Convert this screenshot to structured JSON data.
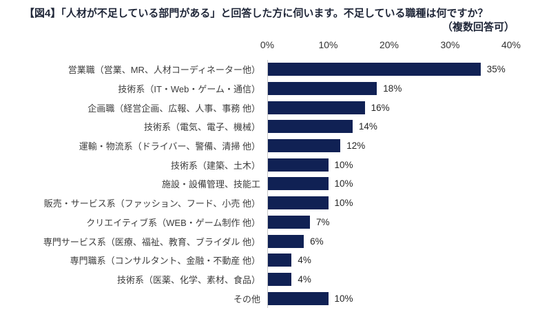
{
  "title": {
    "line1": "【図4】「人材が不足している部門がある」と回答した方に伺います。不足している職種は何ですか？",
    "line2": "（複数回答可）"
  },
  "chart_data": {
    "type": "bar",
    "orientation": "horizontal",
    "title": "【図4】「人材が不足している部門がある」と回答した方に伺います。不足している職種は何ですか？（複数回答可）",
    "categories": [
      "営業職（営業、MR、人材コーディネーター他）",
      "技術系（IT・Web・ゲーム・通信）",
      "企画職（経営企画、広報、人事、事務 他）",
      "技術系（電気、電子、機械）",
      "運輸・物流系（ドライバー、警備、清掃 他）",
      "技術系（建築、土木）",
      "施設・設備管理、技能工",
      "販売・サービス系（ファッション、フード、小売 他）",
      "クリエイティブ系（WEB・ゲーム制作 他）",
      "専門サービス系（医療、福祉、教育、ブライダル 他）",
      "専門職系（コンサルタント、金融・不動産 他）",
      "技術系（医薬、化学、素材、食品）",
      "その他"
    ],
    "values": [
      35,
      18,
      16,
      14,
      12,
      10,
      10,
      10,
      7,
      6,
      4,
      4,
      10
    ],
    "value_suffix": "%",
    "xlabel": "",
    "ylabel": "",
    "xlim": [
      0,
      40
    ],
    "x_ticks": [
      "0%",
      "10%",
      "20%",
      "30%",
      "40%"
    ],
    "grid": false,
    "legend": null,
    "bar_color": "#102154",
    "axis_line_color": "#c9c9c9"
  }
}
